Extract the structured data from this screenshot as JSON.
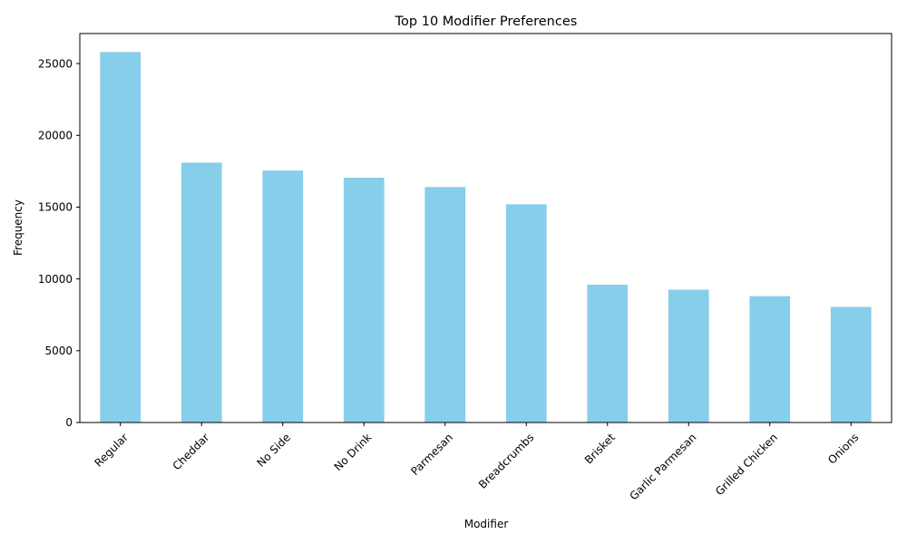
{
  "chart_data": {
    "type": "bar",
    "title": "Top 10 Modifier Preferences",
    "xlabel": "Modifier",
    "ylabel": "Frequency",
    "categories": [
      "Regular",
      "Cheddar",
      "No Side",
      "No Drink",
      "Parmesan",
      "Breadcrumbs",
      "Brisket",
      "Garlic Parmesan",
      "Grilled Chicken",
      "Onions"
    ],
    "values": [
      25800,
      18100,
      17550,
      17050,
      16400,
      15200,
      9600,
      9250,
      8800,
      8050
    ],
    "yticks": [
      0,
      5000,
      10000,
      15000,
      20000,
      25000
    ],
    "ylim": [
      0,
      27090
    ],
    "bar_color": "#87CEEB",
    "grid": false,
    "legend": "none",
    "xtick_rotation_deg": 45
  }
}
